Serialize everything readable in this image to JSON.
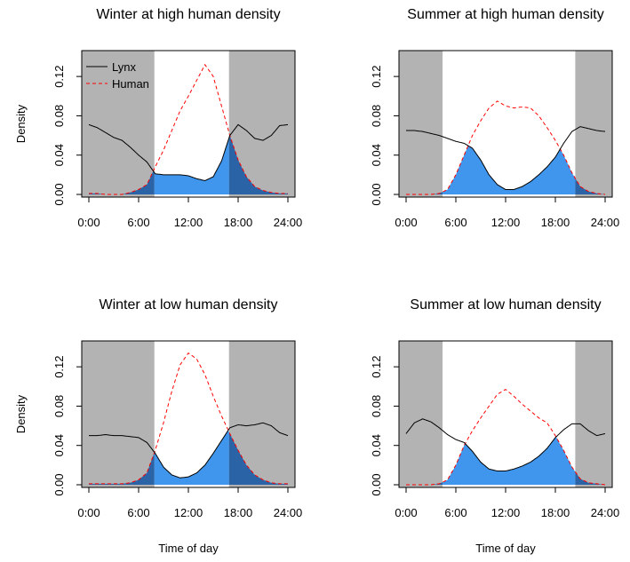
{
  "figure": {
    "ylabel": "Density",
    "xlabel": "Time of day",
    "legend": {
      "placement": "top-left",
      "entries": [
        "Lynx",
        "Human"
      ]
    },
    "colors": {
      "night_shade": "#b3b3b3",
      "overlap_day": "#3f96ec",
      "overlap_night": "#2a64a7",
      "lynx": "#000000",
      "human": "#ff0000"
    }
  },
  "chart_data": [
    {
      "type": "area",
      "title": "Winter at high human density",
      "xlabel": "",
      "ylabel": "Density",
      "xlim": [
        0,
        24
      ],
      "ylim": [
        0,
        0.14
      ],
      "xticks": [
        "0:00",
        "6:00",
        "12:00",
        "18:00",
        "24:00"
      ],
      "yticks": [
        "0.00",
        "0.04",
        "0.08",
        "0.12"
      ],
      "night_periods": [
        [
          0,
          7.9
        ],
        [
          16.9,
          24
        ]
      ],
      "x": [
        0,
        1,
        2,
        3,
        4,
        5,
        6,
        7,
        8,
        9,
        10,
        11,
        12,
        13,
        14,
        15,
        16,
        17,
        18,
        19,
        20,
        21,
        22,
        23,
        24
      ],
      "series": [
        {
          "name": "Lynx",
          "values": [
            0.071,
            0.068,
            0.063,
            0.058,
            0.055,
            0.048,
            0.04,
            0.033,
            0.021,
            0.02,
            0.02,
            0.02,
            0.019,
            0.016,
            0.014,
            0.018,
            0.034,
            0.06,
            0.071,
            0.065,
            0.057,
            0.055,
            0.06,
            0.07,
            0.071
          ]
        },
        {
          "name": "Human",
          "values": [
            0.001,
            0.001,
            0.0,
            0.0,
            0.0,
            0.002,
            0.005,
            0.01,
            0.028,
            0.045,
            0.065,
            0.085,
            0.1,
            0.116,
            0.132,
            0.12,
            0.09,
            0.06,
            0.035,
            0.018,
            0.008,
            0.004,
            0.002,
            0.001,
            0.001
          ]
        }
      ]
    },
    {
      "type": "area",
      "title": "Summer at high human density",
      "xlabel": "",
      "ylabel": "",
      "xlim": [
        0,
        24
      ],
      "ylim": [
        0,
        0.14
      ],
      "xticks": [
        "0:00",
        "6:00",
        "12:00",
        "18:00",
        "24:00"
      ],
      "yticks": [
        "0.00",
        "0.04",
        "0.08",
        "0.12"
      ],
      "night_periods": [
        [
          0,
          4.4
        ],
        [
          20.4,
          24
        ]
      ],
      "x": [
        0,
        1,
        2,
        3,
        4,
        5,
        6,
        7,
        8,
        9,
        10,
        11,
        12,
        13,
        14,
        15,
        16,
        17,
        18,
        19,
        20,
        21,
        22,
        23,
        24
      ],
      "series": [
        {
          "name": "Lynx",
          "values": [
            0.065,
            0.065,
            0.064,
            0.062,
            0.06,
            0.057,
            0.054,
            0.052,
            0.047,
            0.035,
            0.02,
            0.01,
            0.005,
            0.005,
            0.008,
            0.013,
            0.02,
            0.028,
            0.038,
            0.052,
            0.064,
            0.069,
            0.067,
            0.065,
            0.064
          ]
        },
        {
          "name": "Human",
          "values": [
            0.0,
            0.0,
            0.0,
            0.0,
            0.001,
            0.005,
            0.02,
            0.04,
            0.06,
            0.075,
            0.088,
            0.095,
            0.09,
            0.088,
            0.089,
            0.088,
            0.08,
            0.068,
            0.055,
            0.04,
            0.022,
            0.008,
            0.003,
            0.001,
            0.0
          ]
        }
      ]
    },
    {
      "type": "area",
      "title": "Winter at low human density",
      "xlabel": "Time of day",
      "ylabel": "Density",
      "xlim": [
        0,
        24
      ],
      "ylim": [
        0,
        0.14
      ],
      "xticks": [
        "0:00",
        "6:00",
        "12:00",
        "18:00",
        "24:00"
      ],
      "yticks": [
        "0.00",
        "0.04",
        "0.08",
        "0.12"
      ],
      "night_periods": [
        [
          0,
          7.9
        ],
        [
          16.9,
          24
        ]
      ],
      "x": [
        0,
        1,
        2,
        3,
        4,
        5,
        6,
        7,
        8,
        9,
        10,
        11,
        12,
        13,
        14,
        15,
        16,
        17,
        18,
        19,
        20,
        21,
        22,
        23,
        24
      ],
      "series": [
        {
          "name": "Lynx",
          "values": [
            0.05,
            0.05,
            0.051,
            0.05,
            0.05,
            0.049,
            0.048,
            0.043,
            0.032,
            0.018,
            0.01,
            0.007,
            0.008,
            0.012,
            0.02,
            0.032,
            0.045,
            0.058,
            0.061,
            0.06,
            0.061,
            0.063,
            0.06,
            0.053,
            0.05
          ]
        },
        {
          "name": "Human",
          "values": [
            0.001,
            0.001,
            0.001,
            0.001,
            0.001,
            0.002,
            0.005,
            0.012,
            0.035,
            0.063,
            0.095,
            0.122,
            0.134,
            0.128,
            0.112,
            0.09,
            0.07,
            0.052,
            0.035,
            0.02,
            0.01,
            0.005,
            0.002,
            0.001,
            0.001
          ]
        }
      ]
    },
    {
      "type": "area",
      "title": "Summer at low human density",
      "xlabel": "Time of day",
      "ylabel": "",
      "xlim": [
        0,
        24
      ],
      "ylim": [
        0,
        0.14
      ],
      "xticks": [
        "0:00",
        "6:00",
        "12:00",
        "18:00",
        "24:00"
      ],
      "yticks": [
        "0.00",
        "0.04",
        "0.08",
        "0.12"
      ],
      "night_periods": [
        [
          0,
          4.4
        ],
        [
          20.4,
          24
        ]
      ],
      "x": [
        0,
        1,
        2,
        3,
        4,
        5,
        6,
        7,
        8,
        9,
        10,
        11,
        12,
        13,
        14,
        15,
        16,
        17,
        18,
        19,
        20,
        21,
        22,
        23,
        24
      ],
      "series": [
        {
          "name": "Lynx",
          "values": [
            0.052,
            0.063,
            0.067,
            0.064,
            0.058,
            0.051,
            0.046,
            0.043,
            0.034,
            0.023,
            0.016,
            0.014,
            0.014,
            0.016,
            0.019,
            0.023,
            0.029,
            0.037,
            0.048,
            0.056,
            0.062,
            0.062,
            0.055,
            0.05,
            0.052
          ]
        },
        {
          "name": "Human",
          "values": [
            0.0,
            0.0,
            0.0,
            0.0,
            0.001,
            0.005,
            0.02,
            0.04,
            0.055,
            0.068,
            0.08,
            0.092,
            0.097,
            0.09,
            0.082,
            0.075,
            0.068,
            0.063,
            0.05,
            0.035,
            0.018,
            0.006,
            0.002,
            0.001,
            0.0
          ]
        }
      ]
    }
  ]
}
